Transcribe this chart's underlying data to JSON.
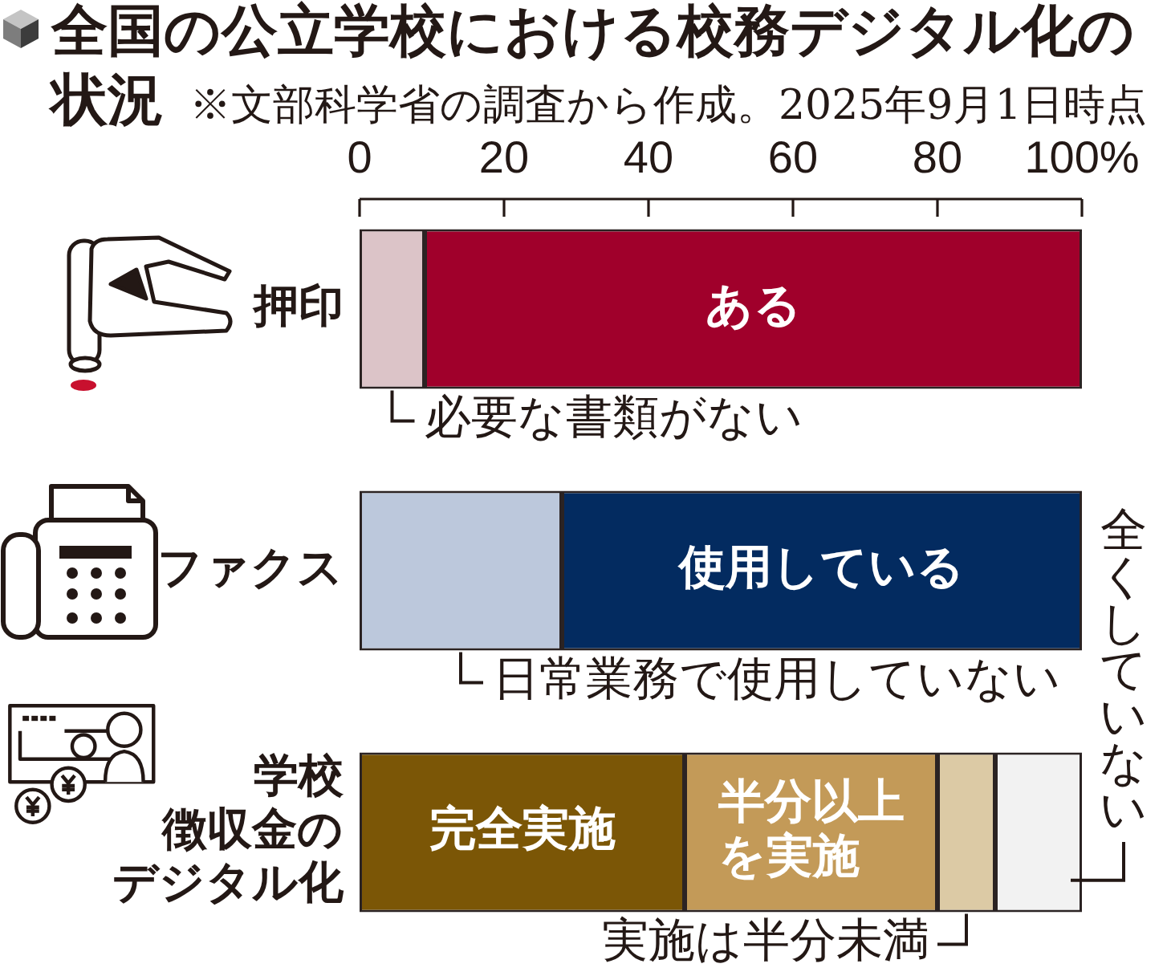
{
  "chart_data": {
    "type": "bar",
    "title": "全国の公立学校における校務デジタル化の状況",
    "subtitle": "※文部科学省の調査から作成。2025年9月1日時点",
    "orientation": "horizontal",
    "stacked": true,
    "categories": [
      "押印",
      "ファクス",
      "学校徴収金のデジタル化"
    ],
    "series": [
      {
        "name": "必要な書類がない",
        "color": "#dcc4c8",
        "values": [
          9,
          null,
          null
        ]
      },
      {
        "name": "ある",
        "color": "#a0002b",
        "values": [
          91,
          null,
          null
        ]
      },
      {
        "name": "日常業務で使用していない",
        "color": "#bcc8dc",
        "values": [
          null,
          28,
          null
        ]
      },
      {
        "name": "使用している",
        "color": "#032b60",
        "values": [
          null,
          72,
          null
        ]
      },
      {
        "name": "完全実施",
        "color": "#7b5606",
        "values": [
          null,
          null,
          45
        ]
      },
      {
        "name": "半分以上を実施",
        "color": "#c39a58",
        "values": [
          null,
          null,
          35
        ]
      },
      {
        "name": "実施は半分未満",
        "color": "#dccaa5",
        "values": [
          null,
          null,
          8
        ]
      },
      {
        "name": "全くしていない",
        "color": "#f2f2f2",
        "values": [
          null,
          null,
          12
        ]
      }
    ],
    "xlim": [
      0,
      100
    ],
    "xticks": [
      0,
      20,
      40,
      60,
      80,
      {
        "value": 100,
        "label": "100%"
      }
    ]
  }
}
